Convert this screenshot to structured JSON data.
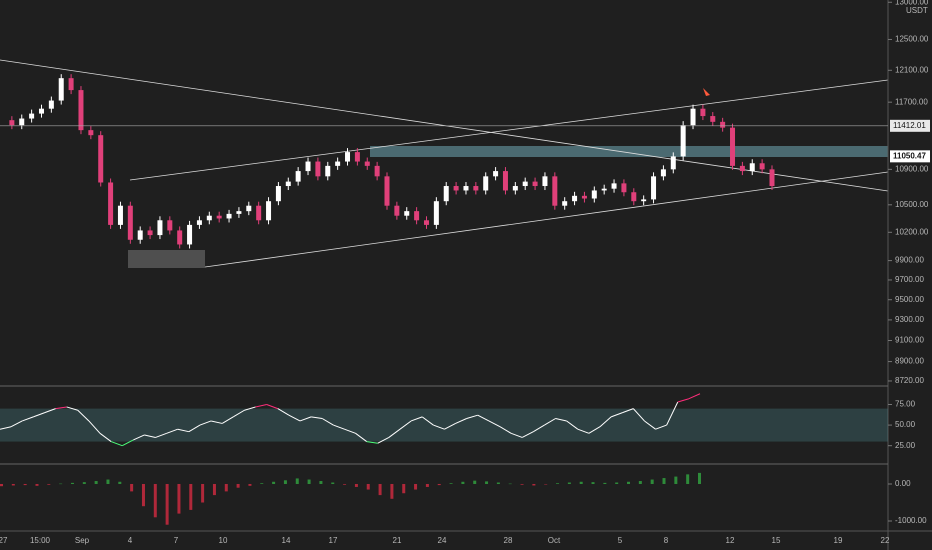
{
  "chart_data": [
    {
      "type": "candlestick",
      "log_scale": true,
      "up_color": "#ffffff",
      "down_color": "#e0407a",
      "values": [
        11480,
        11420,
        11500,
        11560,
        11620,
        11720,
        12000,
        11850,
        11360,
        11300,
        10750,
        10280,
        10490,
        10120,
        10220,
        10170,
        10330,
        10220,
        10070,
        10280,
        10330,
        10380,
        10350,
        10400,
        10430,
        10490,
        10330,
        10540,
        10710,
        10760,
        10880,
        10990,
        10820,
        10940,
        10990,
        11100,
        10990,
        10940,
        10820,
        10490,
        10380,
        10430,
        10330,
        10280,
        10540,
        10710,
        10660,
        10710,
        10660,
        10820,
        10880,
        10660,
        10710,
        10760,
        10710,
        10820,
        10490,
        10540,
        10600,
        10570,
        10660,
        10680,
        10740,
        10640,
        10540,
        10560,
        10820,
        10900,
        11050,
        11420,
        11620,
        11530,
        11460,
        11390,
        10940,
        10880,
        10970,
        10900,
        10710
      ],
      "ylim": [
        8683,
        13031
      ],
      "yticks": [
        {
          "value": 13000,
          "label": "13000.00"
        },
        {
          "value": 12500,
          "label": "12500.00"
        },
        {
          "value": 12100,
          "label": "12100.00"
        },
        {
          "value": 11700,
          "label": "11700.00"
        },
        {
          "value": 10900,
          "label": "10900.00"
        },
        {
          "value": 10500,
          "label": "10500.00"
        },
        {
          "value": 10200,
          "label": "10200.00"
        },
        {
          "value": 9900,
          "label": "9900.00"
        },
        {
          "value": 9700,
          "label": "9700.00"
        },
        {
          "value": 9500,
          "label": "9500.00"
        },
        {
          "value": 9300,
          "label": "9300.00"
        },
        {
          "value": 9100,
          "label": "9100.00"
        },
        {
          "value": 8900,
          "label": "8900.00"
        },
        {
          "value": 8720,
          "label": "8720.00"
        }
      ],
      "currency": "USDT",
      "price_labels": [
        {
          "value": 11412.01,
          "label": "11412.01"
        },
        {
          "value": 11050.47,
          "label": "11050.47"
        }
      ],
      "x_axis_labels": [
        "27",
        "15:00",
        "Sep",
        "4",
        "7",
        "10",
        "14",
        "17",
        "21",
        "24",
        "28",
        "Oct",
        "5",
        "8",
        "12",
        "15",
        "19",
        "22"
      ]
    },
    {
      "type": "line",
      "color": "#ffffff",
      "high_color": "#ff2d7a",
      "low_color": "#4cff7a",
      "values": [
        45,
        48,
        55,
        60,
        65,
        70,
        72,
        68,
        55,
        40,
        30,
        25,
        32,
        38,
        35,
        40,
        45,
        42,
        50,
        55,
        52,
        60,
        68,
        72,
        75,
        70,
        62,
        55,
        60,
        58,
        50,
        45,
        40,
        30,
        28,
        35,
        45,
        55,
        60,
        50,
        45,
        52,
        58,
        62,
        55,
        48,
        40,
        35,
        42,
        50,
        58,
        55,
        45,
        40,
        48,
        60,
        65,
        70,
        55,
        45,
        50,
        78,
        82,
        88
      ],
      "ylim": [
        4,
        95
      ],
      "band": [
        30,
        70
      ],
      "yticks": [
        {
          "value": 75,
          "label": "75.00"
        },
        {
          "value": 50,
          "label": "50.00"
        },
        {
          "value": 25,
          "label": "25.00"
        }
      ]
    },
    {
      "type": "bar",
      "up_color": "#2e8b3a",
      "down_color": "#b0283a",
      "values": [
        -60,
        -40,
        -30,
        -50,
        -20,
        10,
        30,
        50,
        80,
        120,
        60,
        -200,
        -600,
        -900,
        -1100,
        -800,
        -700,
        -500,
        -300,
        -200,
        -100,
        -50,
        20,
        60,
        100,
        150,
        120,
        80,
        40,
        -20,
        -80,
        -150,
        -300,
        -400,
        -250,
        -150,
        -80,
        -30,
        20,
        60,
        90,
        70,
        40,
        10,
        -20,
        -40,
        -10,
        20,
        40,
        60,
        50,
        30,
        40,
        60,
        80,
        120,
        160,
        200,
        260,
        300
      ],
      "ylim": [
        -1243,
        513
      ],
      "yticks": [
        {
          "value": 0,
          "label": "0.00"
        },
        {
          "value": -1000,
          "label": "-1000.00"
        }
      ]
    }
  ]
}
